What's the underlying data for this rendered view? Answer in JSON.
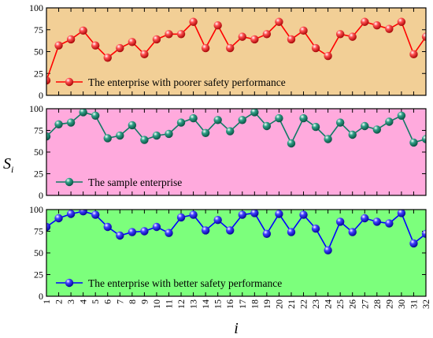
{
  "chart_data": {
    "type": "line",
    "x": [
      1,
      2,
      3,
      4,
      5,
      6,
      7,
      8,
      9,
      10,
      11,
      12,
      13,
      14,
      15,
      16,
      17,
      18,
      19,
      20,
      21,
      22,
      23,
      24,
      25,
      26,
      27,
      28,
      29,
      30,
      31,
      32
    ],
    "xlabel": "i",
    "ylabel": "S",
    "ylabel_subscript": "i",
    "ylim": [
      0,
      100
    ],
    "yticks": [
      "0",
      "25",
      "50",
      "75",
      "100"
    ],
    "xticks": [
      "1",
      "2",
      "3",
      "4",
      "5",
      "6",
      "7",
      "8",
      "9",
      "10",
      "11",
      "12",
      "13",
      "14",
      "15",
      "16",
      "17",
      "18",
      "19",
      "20",
      "21",
      "22",
      "23",
      "24",
      "25",
      "26",
      "27",
      "28",
      "29",
      "30",
      "31",
      "32"
    ],
    "legend_placement": "bottom-left",
    "panels": [
      {
        "legend": "The enterprise with poorer safety performance",
        "background": "#f2cf96",
        "line_color": "#ff0000",
        "values": [
          17,
          57,
          64,
          74,
          57,
          43,
          54,
          61,
          47,
          64,
          70,
          70,
          84,
          54,
          80,
          54,
          67,
          64,
          70,
          84,
          64,
          74,
          54,
          45,
          70,
          67,
          84,
          80,
          76,
          84,
          47,
          67
        ]
      },
      {
        "legend": "The sample enterprise",
        "background": "#ffaadd",
        "line_color": "#117a65",
        "values": [
          68,
          82,
          84,
          96,
          92,
          66,
          69,
          81,
          64,
          69,
          71,
          84,
          89,
          72,
          87,
          74,
          87,
          96,
          80,
          89,
          60,
          89,
          79,
          65,
          84,
          70,
          80,
          76,
          85,
          92,
          61,
          65
        ]
      },
      {
        "legend": "The enterprise with better safety performance",
        "background": "#7cff7c",
        "line_color": "#0000ff",
        "values": [
          80,
          90,
          95,
          98,
          94,
          80,
          70,
          74,
          75,
          80,
          73,
          91,
          94,
          76,
          88,
          76,
          94,
          96,
          72,
          95,
          74,
          94,
          78,
          53,
          86,
          74,
          90,
          86,
          84,
          96,
          61,
          72
        ]
      }
    ]
  }
}
